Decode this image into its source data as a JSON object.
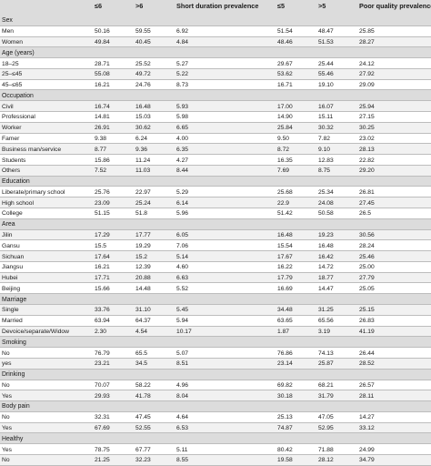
{
  "table": {
    "headers": [
      "",
      "≤6",
      ">6",
      "Short duration prevalence",
      "≤5",
      ">5",
      "Poor quality prevalence"
    ],
    "rows": [
      {
        "type": "group",
        "cells": [
          "Sex",
          "",
          "",
          "",
          "",
          "",
          ""
        ]
      },
      {
        "type": "data",
        "cells": [
          "Men",
          "50.16",
          "59.55",
          "6.92",
          "51.54",
          "48.47",
          "25.85"
        ]
      },
      {
        "type": "data",
        "cells": [
          "Women",
          "49.84",
          "40.45",
          "4.84",
          "48.46",
          "51.53",
          "28.27"
        ]
      },
      {
        "type": "group",
        "cells": [
          "Age (years)",
          "",
          "",
          "",
          "",
          "",
          ""
        ]
      },
      {
        "type": "data",
        "cells": [
          "18–25",
          "28.71",
          "25.52",
          "5.27",
          "29.67",
          "25.44",
          "24.12"
        ]
      },
      {
        "type": "data",
        "cells": [
          "25–≤45",
          "55.08",
          "49.72",
          "5.22",
          "53.62",
          "55.46",
          "27.92"
        ]
      },
      {
        "type": "data",
        "cells": [
          "45–≤65",
          "16.21",
          "24.76",
          "8.73",
          "16.71",
          "19.10",
          "29.09"
        ]
      },
      {
        "type": "group",
        "cells": [
          "Occupation",
          "",
          "",
          "",
          "",
          "",
          ""
        ]
      },
      {
        "type": "data",
        "cells": [
          "Civil",
          "16.74",
          "16.48",
          "5.93",
          "17.00",
          "16.07",
          "25.94"
        ]
      },
      {
        "type": "data",
        "cells": [
          "Professional",
          "14.81",
          "15.03",
          "5.98",
          "14.90",
          "15.11",
          "27.15"
        ]
      },
      {
        "type": "data",
        "cells": [
          "Worker",
          "26.91",
          "30.62",
          "6.65",
          "25.84",
          "30.32",
          "30.25"
        ]
      },
      {
        "type": "data",
        "cells": [
          "Famer",
          "9.38",
          "6.24",
          "4.00",
          "9.50",
          "7.82",
          "23.02"
        ]
      },
      {
        "type": "data",
        "cells": [
          "Business man/service",
          "8.77",
          "9.36",
          "6.35",
          "8.72",
          "9.10",
          "28.13"
        ]
      },
      {
        "type": "data",
        "cells": [
          "Students",
          "15.86",
          "11.24",
          "4.27",
          "16.35",
          "12.83",
          "22.82"
        ]
      },
      {
        "type": "data",
        "cells": [
          "Others",
          "7.52",
          "11.03",
          "8.44",
          "7.69",
          "8.75",
          "29.20"
        ]
      },
      {
        "type": "group",
        "cells": [
          "Education",
          "",
          "",
          "",
          "",
          "",
          ""
        ]
      },
      {
        "type": "data",
        "cells": [
          "Liberate/primary school",
          "25.76",
          "22.97",
          "5.29",
          "25.68",
          "25.34",
          "26.81"
        ]
      },
      {
        "type": "data",
        "cells": [
          "High school",
          "23.09",
          "25.24",
          "6.14",
          "22.9",
          "24.08",
          "27.45"
        ]
      },
      {
        "type": "data",
        "cells": [
          "College",
          "51.15",
          "51.8",
          "5.96",
          "51.42",
          "50.58",
          "26.5"
        ]
      },
      {
        "type": "group",
        "cells": [
          "Area",
          "",
          "",
          "",
          "",
          "",
          ""
        ]
      },
      {
        "type": "data",
        "cells": [
          "Jilin",
          "17.29",
          "17.77",
          "6.05",
          "16.48",
          "19.23",
          "30.56"
        ]
      },
      {
        "type": "data",
        "cells": [
          "Gansu",
          "15.5",
          "19.29",
          "7.06",
          "15.54",
          "16.48",
          "28.24"
        ]
      },
      {
        "type": "data",
        "cells": [
          "Sichuan",
          "17.64",
          "15.2",
          "5.14",
          "17.67",
          "16.42",
          "25.46"
        ]
      },
      {
        "type": "data",
        "cells": [
          "Jiangsu",
          "16.21",
          "12.39",
          "4.60",
          "16.22",
          "14.72",
          "25.00"
        ]
      },
      {
        "type": "data",
        "cells": [
          "Hubei",
          "17.71",
          "20.88",
          "6.63",
          "17.79",
          "18.77",
          "27.79"
        ]
      },
      {
        "type": "data",
        "cells": [
          "Beijing",
          "15.66",
          "14.48",
          "5.52",
          "16.69",
          "14.47",
          "25.05"
        ]
      },
      {
        "type": "group",
        "cells": [
          "Marriage",
          "",
          "",
          "",
          "",
          "",
          ""
        ]
      },
      {
        "type": "data",
        "cells": [
          "Single",
          "33.76",
          "31.10",
          "5.45",
          "34.48",
          "31.25",
          "25.15"
        ]
      },
      {
        "type": "data",
        "cells": [
          "Married",
          "63.94",
          "64.37",
          "5.94",
          "63.65",
          "65.56",
          "26.83"
        ]
      },
      {
        "type": "data",
        "cells": [
          "Devoice/separate/Widow",
          "2.30",
          "4.54",
          "10.17",
          "1.87",
          "3.19",
          "41.19"
        ]
      },
      {
        "type": "group",
        "cells": [
          "Smoking",
          "",
          "",
          "",
          "",
          "",
          ""
        ]
      },
      {
        "type": "data",
        "cells": [
          "No",
          "76.79",
          "65.5",
          "5.07",
          "76.86",
          "74.13",
          "26.44"
        ]
      },
      {
        "type": "data",
        "cells": [
          "yes",
          "23.21",
          "34.5",
          "8.51",
          "23.14",
          "25.87",
          "28.52"
        ]
      },
      {
        "type": "group",
        "cells": [
          "Drinking",
          "",
          "",
          "",
          "",
          "",
          ""
        ]
      },
      {
        "type": "data",
        "cells": [
          "No",
          "70.07",
          "58.22",
          "4.96",
          "69.82",
          "68.21",
          "26.57"
        ]
      },
      {
        "type": "data",
        "cells": [
          "Yes",
          "29.93",
          "41.78",
          "8.04",
          "30.18",
          "31.79",
          "28.11"
        ]
      },
      {
        "type": "group",
        "cells": [
          "Body pain",
          "",
          "",
          "",
          "",
          "",
          ""
        ]
      },
      {
        "type": "data",
        "cells": [
          "No",
          "32.31",
          "47.45",
          "4.64",
          "25.13",
          "47.05",
          "14.27"
        ]
      },
      {
        "type": "data",
        "cells": [
          "Yes",
          "67.69",
          "52.55",
          "6.53",
          "74.87",
          "52.95",
          "33.12"
        ]
      },
      {
        "type": "group",
        "cells": [
          "Healthy",
          "",
          "",
          "",
          "",
          "",
          ""
        ]
      },
      {
        "type": "data",
        "cells": [
          "Yes",
          "78.75",
          "67.77",
          "5.11",
          "80.42",
          "71.88",
          "24.99"
        ]
      },
      {
        "type": "data",
        "cells": [
          "No",
          "21.25",
          "32.23",
          "8.55",
          "19.58",
          "28.12",
          "34.79"
        ]
      }
    ]
  }
}
